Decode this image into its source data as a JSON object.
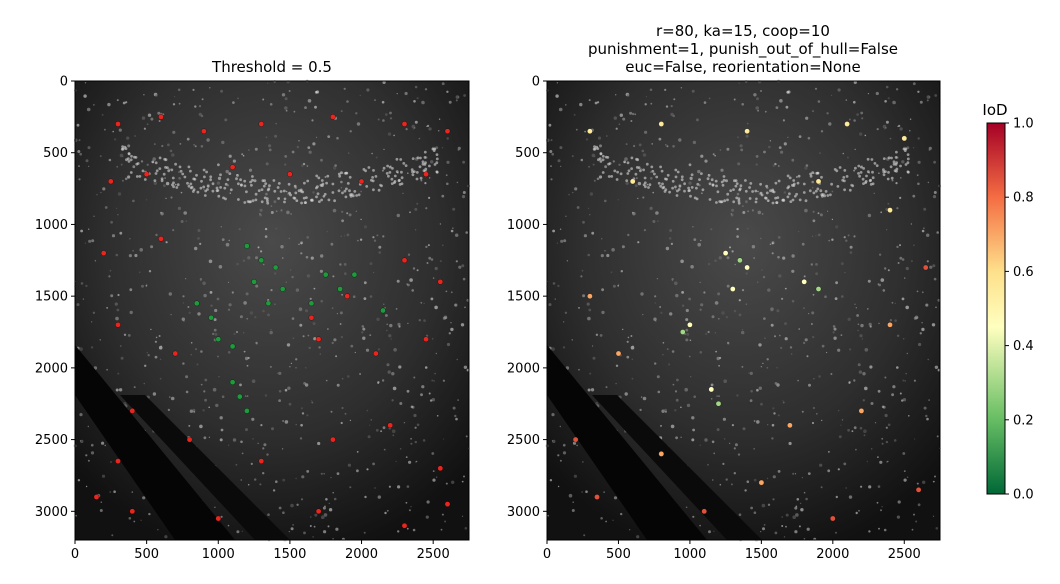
{
  "chart_data": [
    {
      "type": "scatter",
      "title": "Threshold = 0.5",
      "xlabel": "",
      "ylabel": "",
      "xlim": [
        0,
        2750
      ],
      "ylim": [
        3200,
        0
      ],
      "xticks": [
        "0",
        "500",
        "1000",
        "1500",
        "2000",
        "2500"
      ],
      "yticks": [
        "0",
        "500",
        "1000",
        "1500",
        "2000",
        "2500",
        "3000"
      ],
      "background": "aerial point-cloud image (grayscale)",
      "series": [
        {
          "color": "#e8261f",
          "values": [
            [
              300,
              300
            ],
            [
              600,
              250
            ],
            [
              900,
              350
            ],
            [
              1300,
              300
            ],
            [
              1800,
              250
            ],
            [
              2300,
              300
            ],
            [
              2600,
              350
            ],
            [
              250,
              700
            ],
            [
              500,
              650
            ],
            [
              1100,
              600
            ],
            [
              1500,
              650
            ],
            [
              2000,
              700
            ],
            [
              2450,
              650
            ],
            [
              200,
              1200
            ],
            [
              600,
              1100
            ],
            [
              2300,
              1250
            ],
            [
              2550,
              1400
            ],
            [
              300,
              1700
            ],
            [
              700,
              1900
            ],
            [
              1700,
              1800
            ],
            [
              2100,
              1900
            ],
            [
              2450,
              1800
            ],
            [
              400,
              2300
            ],
            [
              800,
              2500
            ],
            [
              1300,
              2650
            ],
            [
              1800,
              2500
            ],
            [
              2200,
              2400
            ],
            [
              2550,
              2700
            ],
            [
              150,
              2900
            ],
            [
              400,
              3000
            ],
            [
              1000,
              3050
            ],
            [
              1700,
              3000
            ],
            [
              2300,
              3100
            ],
            [
              2600,
              2950
            ],
            [
              300,
              2650
            ],
            [
              1900,
              1500
            ],
            [
              1650,
              1650
            ]
          ]
        },
        {
          "color": "#1f9a3c",
          "values": [
            [
              1200,
              1150
            ],
            [
              1300,
              1250
            ],
            [
              1400,
              1300
            ],
            [
              1250,
              1400
            ],
            [
              1450,
              1450
            ],
            [
              1350,
              1550
            ],
            [
              950,
              1650
            ],
            [
              1000,
              1800
            ],
            [
              1100,
              1850
            ],
            [
              1750,
              1350
            ],
            [
              1850,
              1450
            ],
            [
              1950,
              1350
            ],
            [
              1650,
              1550
            ],
            [
              1150,
              2200
            ],
            [
              1200,
              2300
            ],
            [
              1100,
              2100
            ],
            [
              2150,
              1600
            ],
            [
              850,
              1550
            ]
          ]
        }
      ]
    },
    {
      "type": "scatter",
      "title": "r=80, ka=15, coop=10\npunishment=1, punish_out_of_hull=False\neuc=False, reorientation=None",
      "title_lines": [
        "r=80, ka=15, coop=10",
        "punishment=1, punish_out_of_hull=False",
        "euc=False, reorientation=None"
      ],
      "xlabel": "",
      "ylabel": "",
      "xlim": [
        0,
        2750
      ],
      "ylim": [
        3200,
        0
      ],
      "xticks": [
        "0",
        "500",
        "1000",
        "1500",
        "2000",
        "2500"
      ],
      "yticks": [
        "0",
        "500",
        "1000",
        "1500",
        "2000",
        "2500",
        "3000"
      ],
      "colorbar": {
        "label": "IoD",
        "range": [
          0.0,
          1.0
        ],
        "ticks": [
          "0.0",
          "0.2",
          "0.4",
          "0.6",
          "0.8",
          "1.0"
        ],
        "colormap": "RdYlGn reversed"
      },
      "series": [
        {
          "name_iod": 0.55,
          "values": [
            [
              300,
              350
            ],
            [
              800,
              300
            ],
            [
              1400,
              350
            ],
            [
              2100,
              300
            ],
            [
              2500,
              400
            ],
            [
              600,
              700
            ],
            [
              1900,
              700
            ],
            [
              2400,
              900
            ]
          ]
        },
        {
          "name_iod": 0.45,
          "values": [
            [
              1250,
              1200
            ],
            [
              1400,
              1300
            ],
            [
              1300,
              1450
            ],
            [
              1800,
              1400
            ],
            [
              1000,
              1700
            ],
            [
              1150,
              2150
            ]
          ]
        },
        {
          "name_iod": 0.3,
          "values": [
            [
              1350,
              1250
            ],
            [
              950,
              1750
            ],
            [
              1900,
              1450
            ],
            [
              1200,
              2250
            ]
          ]
        },
        {
          "name_iod": 0.7,
          "values": [
            [
              300,
              1500
            ],
            [
              500,
              1900
            ],
            [
              1700,
              2400
            ],
            [
              2200,
              2300
            ],
            [
              1500,
              2800
            ],
            [
              800,
              2600
            ],
            [
              2400,
              1700
            ]
          ]
        },
        {
          "name_iod": 0.85,
          "values": [
            [
              200,
              2500
            ],
            [
              350,
              2900
            ],
            [
              1100,
              3000
            ],
            [
              2000,
              3050
            ],
            [
              2600,
              2850
            ],
            [
              2650,
              1300
            ]
          ]
        }
      ]
    }
  ]
}
